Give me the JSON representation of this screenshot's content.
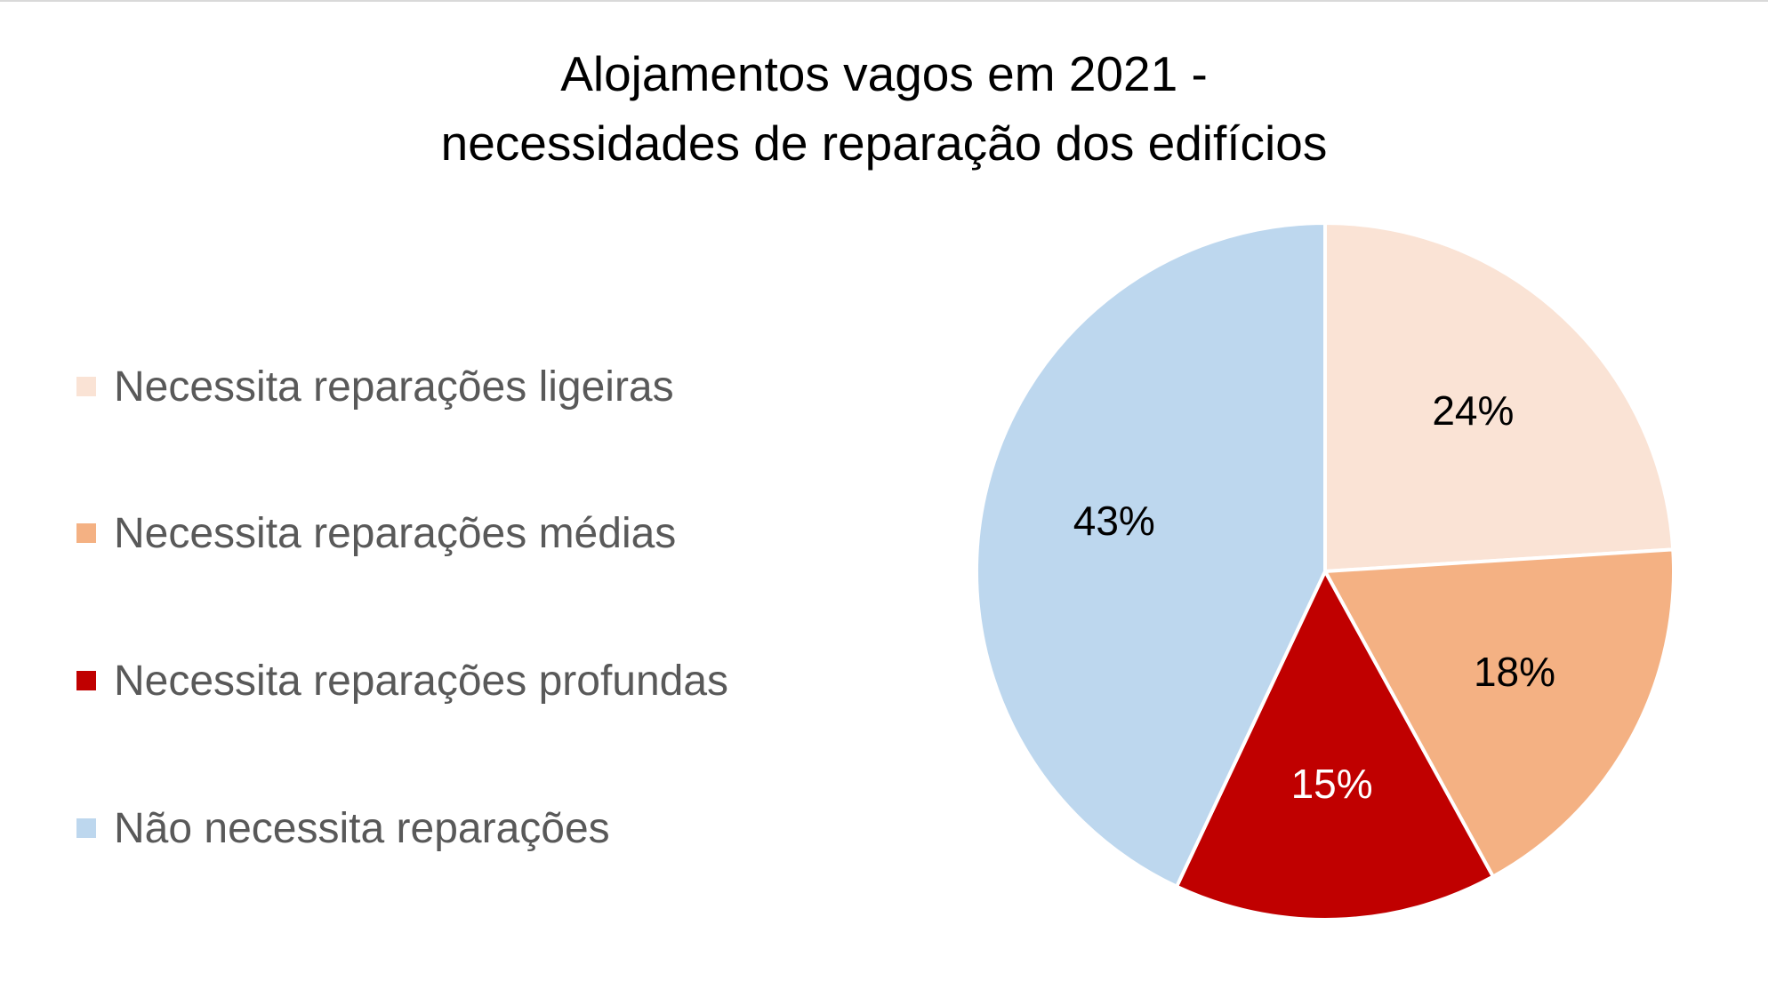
{
  "chart_data": {
    "type": "pie",
    "title": [
      "Alojamentos vagos em 2021 -",
      "necessidades de reparação dos edifícios"
    ],
    "legend_position": "left",
    "slices": [
      {
        "label": "Necessita reparações ligeiras",
        "value": 24,
        "display": "24%",
        "color": "#FAE3D5",
        "label_color": "#000000"
      },
      {
        "label": "Necessita reparações médias",
        "value": 18,
        "display": "18%",
        "color": "#F4B183",
        "label_color": "#000000"
      },
      {
        "label": "Necessita reparações profundas",
        "value": 15,
        "display": "15%",
        "color": "#C00000",
        "label_color": "#ffffff"
      },
      {
        "label": "Não necessita reparações",
        "value": 43,
        "display": "43%",
        "color": "#BDD7EE",
        "label_color": "#000000"
      }
    ]
  }
}
